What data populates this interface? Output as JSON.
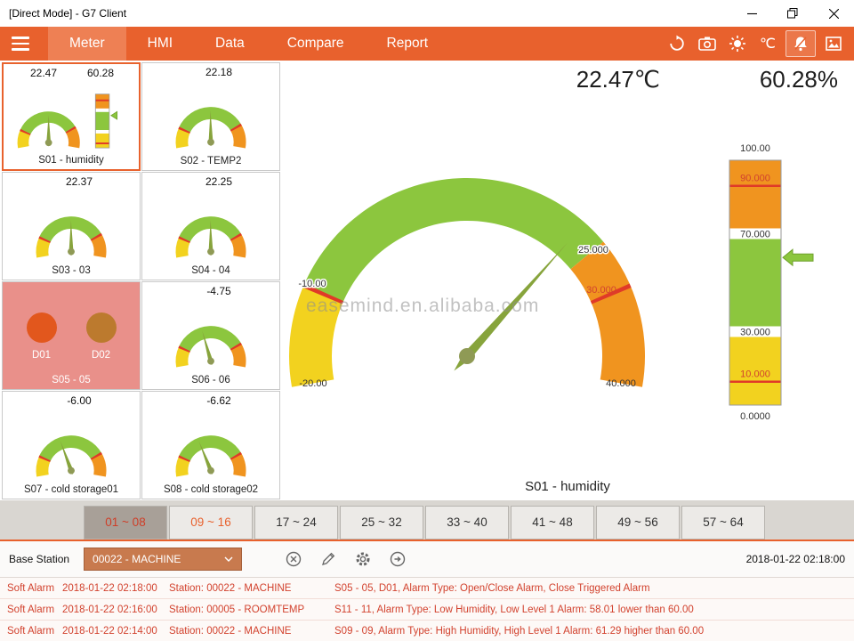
{
  "window": {
    "title": "[Direct Mode] - G7 Client"
  },
  "nav": {
    "tabs": [
      "Meter",
      "HMI",
      "Data",
      "Compare",
      "Report"
    ],
    "active_tab": "Meter",
    "unit": "℃"
  },
  "sidebar": {
    "tiles": [
      {
        "name": "S01",
        "label": "S01 - humidity",
        "value": "22.47",
        "value2": "60.28",
        "gauge_value": 22.47,
        "bar_value": 60.28,
        "kind": "gauge-bar",
        "selected": true
      },
      {
        "name": "S02",
        "label": "S02 - TEMP2",
        "value": "22.18",
        "gauge_value": 22.18,
        "kind": "gauge"
      },
      {
        "name": "S03",
        "label": "S03 - 03",
        "value": "22.37",
        "gauge_value": 22.37,
        "kind": "gauge"
      },
      {
        "name": "S04",
        "label": "S04 - 04",
        "value": "22.25",
        "gauge_value": 22.25,
        "kind": "gauge"
      },
      {
        "name": "S05",
        "label": "S05 - 05",
        "kind": "digital",
        "bg": "#e9908a",
        "channels": [
          {
            "label": "D01",
            "color": "#e2571d"
          },
          {
            "label": "D02",
            "color": "#bc7a2e"
          }
        ]
      },
      {
        "name": "S06",
        "label": "S06 - 06",
        "value": "-4.75",
        "gauge_value": -4.75,
        "kind": "gauge"
      },
      {
        "name": "S07",
        "label": "S07 - cold storage01",
        "value": "-6.00",
        "gauge_value": -6.0,
        "kind": "gauge"
      },
      {
        "name": "S08",
        "label": "S08 - cold storage02",
        "value": "-6.62",
        "gauge_value": -6.62,
        "kind": "gauge"
      }
    ]
  },
  "main": {
    "temperature": "22.47℃",
    "humidity": "60.28%",
    "caption": "S01 - humidity",
    "watermark": "easemind.en.alibaba.com",
    "gauge": {
      "min": -20,
      "max": 40,
      "value": 22.47,
      "low": -10,
      "high": 25,
      "alarm": 30,
      "min_label": "-20.00",
      "max_label": "40.000",
      "low_label": "-10.00",
      "high_label": "25.000",
      "alarm_label": "30.000"
    },
    "bar": {
      "min": 0,
      "max": 100,
      "value": 60.28,
      "hi_alarm": 90,
      "hi": 70,
      "lo": 30,
      "lo_alarm": 10,
      "top_label": "100.00",
      "bottom_label": "0.0000",
      "hi_alarm_label": "90.000",
      "hi_label": "70.000",
      "lo_label": "30.000",
      "lo_alarm_label": "10.000"
    }
  },
  "range_tabs": [
    {
      "label": "01 ~ 08",
      "state": "active"
    },
    {
      "label": "09 ~ 16",
      "state": "alert"
    },
    {
      "label": "17 ~ 24",
      "state": "normal"
    },
    {
      "label": "25 ~ 32",
      "state": "normal"
    },
    {
      "label": "33 ~ 40",
      "state": "normal"
    },
    {
      "label": "41 ~ 48",
      "state": "normal"
    },
    {
      "label": "49 ~ 56",
      "state": "normal"
    },
    {
      "label": "57 ~ 64",
      "state": "normal"
    }
  ],
  "footer": {
    "label": "Base Station",
    "station": "00022 - MACHINE",
    "timestamp": "2018-01-22 02:18:00"
  },
  "alarms": [
    {
      "severity": "Soft Alarm",
      "time": "2018-01-22 02:18:00",
      "station": "Station: 00022 - MACHINE",
      "message": "S05 - 05, D01, Alarm Type: Open/Close Alarm, Close Triggered Alarm"
    },
    {
      "severity": "Soft Alarm",
      "time": "2018-01-22 02:16:00",
      "station": "Station: 00005 - ROOMTEMP",
      "message": "S11 - 11, Alarm Type: Low Humidity, Low Level 1 Alarm: 58.01 lower than 60.00"
    },
    {
      "severity": "Soft Alarm",
      "time": "2018-01-22 02:14:00",
      "station": "Station: 00022 - MACHINE",
      "message": "S09 - 09, Alarm Type: High Humidity, High Level 1 Alarm: 61.29 higher than 60.00"
    }
  ],
  "colors": {
    "accent": "#e8612d",
    "gauge_green": "#8cc63e",
    "gauge_orange": "#f0941f",
    "gauge_yellow": "#f2d21f",
    "alarm_red": "#e03a28",
    "alarm_text": "#d2422e"
  }
}
